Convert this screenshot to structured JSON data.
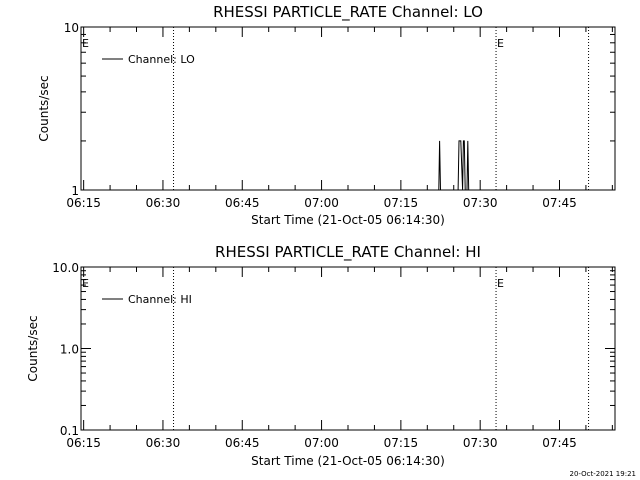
{
  "footer": {
    "timestamp": "20-Oct-2021 19:21"
  },
  "chart_data": [
    {
      "type": "line",
      "title": "RHESSI PARTICLE_RATE Channel: LO",
      "xlabel": "Start Time (21-Oct-05 06:14:30)",
      "ylabel": "Counts/sec",
      "yscale": "log",
      "ylim": [
        1,
        10
      ],
      "ytick_labels": [
        "1",
        "10"
      ],
      "ytick_values": [
        1,
        10
      ],
      "xlim": [
        "06:14:30",
        "07:55:30"
      ],
      "xtick_labels": [
        "06:15",
        "06:30",
        "06:45",
        "07:00",
        "07:15",
        "07:30",
        "07:45"
      ],
      "legend": {
        "label": "Channel: LO",
        "placement": "top-left"
      },
      "vertical_markers": [
        {
          "time": "06:32:00",
          "label": ""
        },
        {
          "time": "07:33:00",
          "label": "E"
        },
        {
          "time": "07:50:30",
          "label": ""
        }
      ],
      "start_marker_label": "E",
      "series": [
        {
          "name": "Channel: LO",
          "points": [
            [
              "07:22:10",
              1
            ],
            [
              "07:22:20",
              2
            ],
            [
              "07:22:30",
              1
            ],
            [
              "07:25:50",
              1
            ],
            [
              "07:26:00",
              2
            ],
            [
              "07:26:20",
              2
            ],
            [
              "07:26:40",
              1
            ],
            [
              "07:26:50",
              2
            ],
            [
              "07:27:00",
              2
            ],
            [
              "07:27:10",
              1
            ],
            [
              "07:27:30",
              1
            ],
            [
              "07:27:40",
              2
            ],
            [
              "07:27:50",
              1
            ]
          ]
        }
      ]
    },
    {
      "type": "line",
      "title": "RHESSI PARTICLE_RATE Channel: HI",
      "xlabel": "Start Time (21-Oct-05 06:14:30)",
      "ylabel": "Counts/sec",
      "yscale": "log",
      "ylim": [
        0.1,
        10
      ],
      "ytick_labels": [
        "0.1",
        "1.0",
        "10.0"
      ],
      "ytick_values": [
        0.1,
        1,
        10
      ],
      "xlim": [
        "06:14:30",
        "07:55:30"
      ],
      "xtick_labels": [
        "06:15",
        "06:30",
        "06:45",
        "07:00",
        "07:15",
        "07:30",
        "07:45"
      ],
      "legend": {
        "label": "Channel: HI",
        "placement": "top-left"
      },
      "vertical_markers": [
        {
          "time": "06:32:00",
          "label": ""
        },
        {
          "time": "07:33:00",
          "label": "E"
        },
        {
          "time": "07:50:30",
          "label": ""
        }
      ],
      "start_marker_label": "E",
      "series": [
        {
          "name": "Channel: HI",
          "points": []
        }
      ]
    }
  ]
}
